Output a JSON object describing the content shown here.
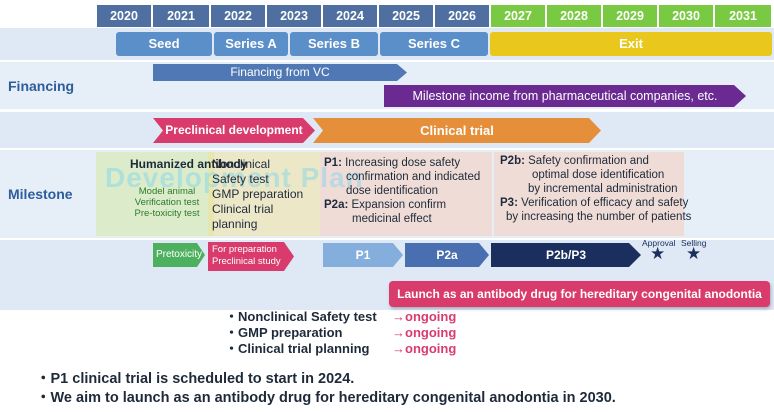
{
  "years": [
    "2020",
    "2021",
    "2022",
    "2023",
    "2024",
    "2025",
    "2026",
    "2027",
    "2028",
    "2029",
    "2030",
    "2031"
  ],
  "phases": {
    "seed": "Seed",
    "seriesA": "Series A",
    "seriesB": "Series B",
    "seriesC": "Series C",
    "exit": "Exit"
  },
  "rows": {
    "financing": "Financing",
    "milestone": "Milestone"
  },
  "financing": {
    "vc": "Financing from VC",
    "milestone_income": "Milestone income from pharmaceutical companies, etc."
  },
  "stages": {
    "preclinical": "Preclinical development",
    "clinical": "Clinical trial"
  },
  "milestone": {
    "antibody_title": "Humanized antibody",
    "antibody_items": [
      "Model animal",
      "Verification test",
      "Pre-toxicity test"
    ],
    "nonclinical": [
      "Nonclinical",
      "Safety test",
      "GMP preparation",
      "Clinical trial",
      "planning"
    ],
    "p1_label": "P1:",
    "p1_text": [
      "Increasing dose safety",
      "confirmation and indicated",
      "dose identification"
    ],
    "p2a_label": "P2a:",
    "p2a_text": [
      "Expansion confirm",
      "medicinal effect"
    ],
    "p2b_label": "P2b:",
    "p2b_text": [
      "Safety confirmation and",
      "optimal dose identification",
      "by incremental administration"
    ],
    "p3_label": "P3:",
    "p3_text": [
      "Verification of efficacy and safety",
      "by increasing the number of patients"
    ],
    "watermark": "Development Plan"
  },
  "bars": {
    "pretoxicity": "Pretoxicity",
    "preparation": [
      "For preparation",
      "Preclinical study"
    ],
    "p1": "P1",
    "p2a": "P2a",
    "p2bp3": "P2b/P3",
    "approval": "Approval",
    "selling": "Selling"
  },
  "launch": "Launch as an antibody drug for hereditary congenital anodontia",
  "status": {
    "items": [
      "・Nonclinical Safety test",
      "・GMP preparation",
      "・Clinical trial planning"
    ],
    "value": "→ongoing"
  },
  "bullets": [
    "・P1 clinical trial is scheduled to start in 2024.",
    "・We aim to launch as an antibody drug for hereditary congenital anodontia in 2030."
  ],
  "colors": {
    "past": "#4f6fa0",
    "future": "#7ac943",
    "phase": "#5b8fc9",
    "exit": "#e9c71d",
    "purple": "#6a2a92",
    "pink": "#d93b6d",
    "orange": "#e58f3b",
    "green": "#4db05f",
    "navy": "#1b2f5e",
    "ongoing": "#d93b6d"
  }
}
